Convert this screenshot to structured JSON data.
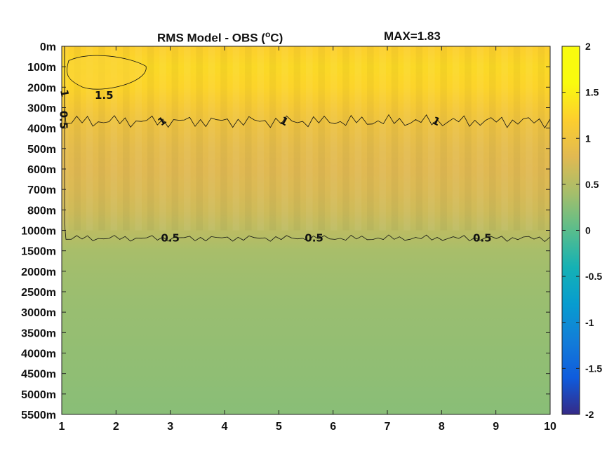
{
  "title": "RMS Model - OBS (",
  "title_sup": "o",
  "title_end": "C)",
  "max_label": "MAX=1.83",
  "chart_data": {
    "type": "heatmap",
    "title": "RMS Model - OBS (oC)",
    "annotation": "MAX=1.83",
    "x": [
      1,
      2,
      3,
      4,
      5,
      6,
      7,
      8,
      9,
      10
    ],
    "xlim": [
      1,
      10
    ],
    "y_categories": [
      "0m",
      "100m",
      "200m",
      "300m",
      "400m",
      "500m",
      "600m",
      "700m",
      "800m",
      "1000m",
      "1500m",
      "2000m",
      "2500m",
      "3000m",
      "3500m",
      "4000m",
      "4500m",
      "5000m",
      "5500m"
    ],
    "y_direction": "top-to-bottom",
    "colorbar": {
      "min": -2,
      "max": 2,
      "ticks": [
        "2",
        "1.5",
        "1",
        "0.5",
        "0",
        "-0.5",
        "-1",
        "-1.5",
        "-2"
      ],
      "colormap": "parula"
    },
    "profile_by_depth": [
      {
        "depth": "0m",
        "rms": 1.2
      },
      {
        "depth": "100m",
        "rms": 1.3
      },
      {
        "depth": "200m",
        "rms": 1.25
      },
      {
        "depth": "300m",
        "rms": 1.1
      },
      {
        "depth": "400m",
        "rms": 0.95
      },
      {
        "depth": "500m",
        "rms": 0.85
      },
      {
        "depth": "600m",
        "rms": 0.8
      },
      {
        "depth": "700m",
        "rms": 0.75
      },
      {
        "depth": "800m",
        "rms": 0.68
      },
      {
        "depth": "1000m",
        "rms": 0.55
      },
      {
        "depth": "1500m",
        "rms": 0.42
      },
      {
        "depth": "2000m",
        "rms": 0.38
      },
      {
        "depth": "2500m",
        "rms": 0.35
      },
      {
        "depth": "3000m",
        "rms": 0.33
      },
      {
        "depth": "3500m",
        "rms": 0.32
      },
      {
        "depth": "4000m",
        "rms": 0.3
      },
      {
        "depth": "4500m",
        "rms": 0.29
      },
      {
        "depth": "5000m",
        "rms": 0.27
      },
      {
        "depth": "5500m",
        "rms": 0.25
      }
    ],
    "contour_labels": [
      "1.5",
      "1",
      "1",
      "1",
      "1",
      "0.5",
      "0.5",
      "0.5",
      "0.5"
    ]
  }
}
